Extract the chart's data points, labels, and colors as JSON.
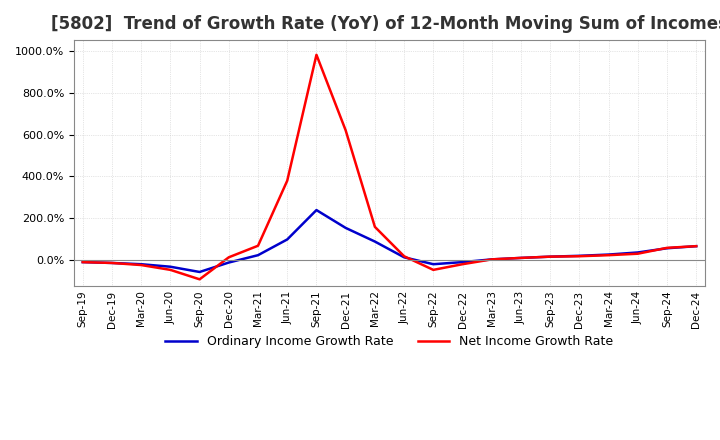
{
  "title": "[5802]  Trend of Growth Rate (YoY) of 12-Month Moving Sum of Incomes",
  "title_fontsize": 12,
  "background_color": "#ffffff",
  "grid_color": "#cccccc",
  "ordinary_income_color": "#0000cc",
  "net_income_color": "#ff0000",
  "legend_labels": [
    "Ordinary Income Growth Rate",
    "Net Income Growth Rate"
  ],
  "x_labels": [
    "Sep-19",
    "Dec-19",
    "Mar-20",
    "Jun-20",
    "Sep-20",
    "Dec-20",
    "Mar-21",
    "Jun-21",
    "Sep-21",
    "Dec-21",
    "Mar-22",
    "Jun-22",
    "Sep-22",
    "Dec-22",
    "Mar-23",
    "Jun-23",
    "Sep-23",
    "Dec-23",
    "Mar-24",
    "Jun-24",
    "Sep-24",
    "Dec-24"
  ],
  "ylim": [
    -120,
    1050
  ],
  "yticks": [
    0.0,
    200.0,
    400.0,
    600.0,
    800.0,
    1000.0
  ],
  "ordinary_income": [
    -8,
    -12,
    -18,
    -30,
    -55,
    -10,
    25,
    100,
    240,
    155,
    90,
    15,
    -18,
    -8,
    5,
    12,
    18,
    22,
    28,
    38,
    58,
    68
  ],
  "net_income": [
    -8,
    -12,
    -22,
    -45,
    -90,
    15,
    70,
    380,
    980,
    620,
    160,
    20,
    -45,
    -18,
    5,
    12,
    18,
    20,
    25,
    32,
    60,
    68
  ]
}
